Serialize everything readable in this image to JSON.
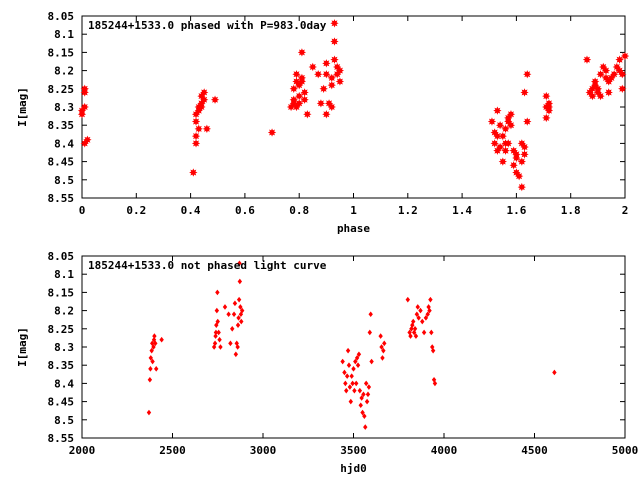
{
  "colors": {
    "marker": "#ff0000",
    "axis": "#000000",
    "background": "#ffffff"
  },
  "chart_data": [
    {
      "type": "scatter",
      "title": "185244+1533.0 phased with P=983.0day",
      "xlabel": "phase",
      "ylabel": "I[mag]",
      "xlim": [
        0,
        2
      ],
      "ylim": [
        8.55,
        8.05
      ],
      "y_inverted": true,
      "grid": false,
      "legend": "none",
      "marker": "filled-star",
      "xticks": [
        "0",
        "0.2",
        "0.4",
        "0.6",
        "0.8",
        "1",
        "1.2",
        "1.4",
        "1.6",
        "1.8",
        "2"
      ],
      "yticks": [
        "8.05",
        "8.1",
        "8.15",
        "8.2",
        "8.25",
        "8.3",
        "8.35",
        "8.4",
        "8.45",
        "8.5",
        "8.55"
      ],
      "points": [
        [
          0.0,
          8.32
        ],
        [
          0.0,
          8.31
        ],
        [
          0.01,
          8.3
        ],
        [
          0.01,
          8.26
        ],
        [
          0.01,
          8.25
        ],
        [
          0.01,
          8.4
        ],
        [
          0.02,
          8.39
        ],
        [
          0.41,
          8.48
        ],
        [
          0.42,
          8.4
        ],
        [
          0.42,
          8.38
        ],
        [
          0.42,
          8.34
        ],
        [
          0.42,
          8.32
        ],
        [
          0.43,
          8.36
        ],
        [
          0.43,
          8.3
        ],
        [
          0.43,
          8.31
        ],
        [
          0.44,
          8.29
        ],
        [
          0.44,
          8.27
        ],
        [
          0.44,
          8.3
        ],
        [
          0.45,
          8.26
        ],
        [
          0.45,
          8.28
        ],
        [
          0.46,
          8.36
        ],
        [
          0.49,
          8.28
        ],
        [
          0.7,
          8.37
        ],
        [
          0.77,
          8.3
        ],
        [
          0.78,
          8.29
        ],
        [
          0.78,
          8.28
        ],
        [
          0.78,
          8.25
        ],
        [
          0.79,
          8.21
        ],
        [
          0.79,
          8.23
        ],
        [
          0.79,
          8.3
        ],
        [
          0.8,
          8.29
        ],
        [
          0.8,
          8.27
        ],
        [
          0.8,
          8.24
        ],
        [
          0.81,
          8.22
        ],
        [
          0.81,
          8.15
        ],
        [
          0.81,
          8.23
        ],
        [
          0.82,
          8.26
        ],
        [
          0.82,
          8.28
        ],
        [
          0.83,
          8.32
        ],
        [
          0.85,
          8.19
        ],
        [
          0.87,
          8.21
        ],
        [
          0.88,
          8.29
        ],
        [
          0.89,
          8.25
        ],
        [
          0.9,
          8.21
        ],
        [
          0.9,
          8.18
        ],
        [
          0.9,
          8.32
        ],
        [
          0.91,
          8.29
        ],
        [
          0.92,
          8.3
        ],
        [
          0.92,
          8.24
        ],
        [
          0.92,
          8.22
        ],
        [
          0.93,
          8.17
        ],
        [
          0.93,
          8.07
        ],
        [
          0.93,
          8.12
        ],
        [
          0.94,
          8.19
        ],
        [
          0.94,
          8.21
        ],
        [
          0.95,
          8.23
        ],
        [
          0.95,
          8.2
        ],
        [
          1.51,
          8.34
        ],
        [
          1.52,
          8.37
        ],
        [
          1.52,
          8.4
        ],
        [
          1.53,
          8.42
        ],
        [
          1.53,
          8.38
        ],
        [
          1.53,
          8.31
        ],
        [
          1.54,
          8.35
        ],
        [
          1.54,
          8.41
        ],
        [
          1.55,
          8.45
        ],
        [
          1.55,
          8.38
        ],
        [
          1.56,
          8.4
        ],
        [
          1.56,
          8.36
        ],
        [
          1.56,
          8.42
        ],
        [
          1.57,
          8.34
        ],
        [
          1.57,
          8.4
        ],
        [
          1.57,
          8.33
        ],
        [
          1.58,
          8.35
        ],
        [
          1.58,
          8.32
        ],
        [
          1.59,
          8.42
        ],
        [
          1.59,
          8.46
        ],
        [
          1.6,
          8.44
        ],
        [
          1.6,
          8.48
        ],
        [
          1.6,
          8.43
        ],
        [
          1.61,
          8.49
        ],
        [
          1.62,
          8.52
        ],
        [
          1.62,
          8.4
        ],
        [
          1.62,
          8.45
        ],
        [
          1.63,
          8.43
        ],
        [
          1.63,
          8.41
        ],
        [
          1.63,
          8.26
        ],
        [
          1.64,
          8.21
        ],
        [
          1.64,
          8.34
        ],
        [
          1.71,
          8.27
        ],
        [
          1.71,
          8.3
        ],
        [
          1.71,
          8.33
        ],
        [
          1.72,
          8.31
        ],
        [
          1.72,
          8.29
        ],
        [
          1.72,
          8.3
        ],
        [
          1.86,
          8.17
        ],
        [
          1.87,
          8.26
        ],
        [
          1.88,
          8.27
        ],
        [
          1.88,
          8.25
        ],
        [
          1.89,
          8.24
        ],
        [
          1.89,
          8.23
        ],
        [
          1.9,
          8.26
        ],
        [
          1.9,
          8.25
        ],
        [
          1.91,
          8.27
        ],
        [
          1.91,
          8.21
        ],
        [
          1.92,
          8.19
        ],
        [
          1.93,
          8.22
        ],
        [
          1.93,
          8.2
        ],
        [
          1.94,
          8.23
        ],
        [
          1.94,
          8.26
        ],
        [
          1.95,
          8.22
        ],
        [
          1.96,
          8.21
        ],
        [
          1.97,
          8.19
        ],
        [
          1.98,
          8.2
        ],
        [
          1.98,
          8.17
        ],
        [
          1.99,
          8.21
        ],
        [
          1.99,
          8.25
        ],
        [
          2.0,
          8.16
        ]
      ]
    },
    {
      "type": "scatter",
      "title": "185244+1533.0 not phased light curve",
      "xlabel": "hjd0",
      "ylabel": "I[mag]",
      "xlim": [
        2000,
        5000
      ],
      "ylim": [
        8.55,
        8.05
      ],
      "y_inverted": true,
      "grid": false,
      "legend": "none",
      "marker": "small-diamond",
      "xticks": [
        "2000",
        "2500",
        "3000",
        "3500",
        "4000",
        "4500",
        "5000"
      ],
      "yticks": [
        "8.05",
        "8.1",
        "8.15",
        "8.2",
        "8.25",
        "8.3",
        "8.35",
        "8.4",
        "8.45",
        "8.5",
        "8.55"
      ],
      "points": [
        [
          2370,
          8.48
        ],
        [
          2375,
          8.39
        ],
        [
          2378,
          8.36
        ],
        [
          2380,
          8.33
        ],
        [
          2385,
          8.31
        ],
        [
          2388,
          8.29
        ],
        [
          2390,
          8.34
        ],
        [
          2395,
          8.3
        ],
        [
          2398,
          8.28
        ],
        [
          2400,
          8.27
        ],
        [
          2405,
          8.29
        ],
        [
          2410,
          8.36
        ],
        [
          2440,
          8.28
        ],
        [
          2730,
          8.3
        ],
        [
          2735,
          8.29
        ],
        [
          2738,
          8.27
        ],
        [
          2740,
          8.26
        ],
        [
          2742,
          8.24
        ],
        [
          2745,
          8.2
        ],
        [
          2748,
          8.15
        ],
        [
          2750,
          8.23
        ],
        [
          2755,
          8.26
        ],
        [
          2760,
          8.28
        ],
        [
          2765,
          8.3
        ],
        [
          2790,
          8.19
        ],
        [
          2810,
          8.21
        ],
        [
          2820,
          8.29
        ],
        [
          2830,
          8.25
        ],
        [
          2840,
          8.21
        ],
        [
          2845,
          8.18
        ],
        [
          2850,
          8.32
        ],
        [
          2855,
          8.29
        ],
        [
          2860,
          8.3
        ],
        [
          2862,
          8.24
        ],
        [
          2865,
          8.22
        ],
        [
          2868,
          8.17
        ],
        [
          2870,
          8.07
        ],
        [
          2872,
          8.12
        ],
        [
          2875,
          8.19
        ],
        [
          2878,
          8.21
        ],
        [
          2880,
          8.23
        ],
        [
          2885,
          8.2
        ],
        [
          3440,
          8.34
        ],
        [
          3450,
          8.37
        ],
        [
          3455,
          8.4
        ],
        [
          3460,
          8.42
        ],
        [
          3465,
          8.38
        ],
        [
          3470,
          8.31
        ],
        [
          3475,
          8.35
        ],
        [
          3480,
          8.41
        ],
        [
          3485,
          8.45
        ],
        [
          3490,
          8.38
        ],
        [
          3495,
          8.4
        ],
        [
          3500,
          8.36
        ],
        [
          3505,
          8.42
        ],
        [
          3510,
          8.34
        ],
        [
          3515,
          8.4
        ],
        [
          3520,
          8.33
        ],
        [
          3525,
          8.35
        ],
        [
          3530,
          8.32
        ],
        [
          3535,
          8.42
        ],
        [
          3540,
          8.46
        ],
        [
          3545,
          8.44
        ],
        [
          3550,
          8.48
        ],
        [
          3555,
          8.43
        ],
        [
          3560,
          8.49
        ],
        [
          3565,
          8.52
        ],
        [
          3570,
          8.4
        ],
        [
          3575,
          8.45
        ],
        [
          3580,
          8.43
        ],
        [
          3585,
          8.41
        ],
        [
          3590,
          8.26
        ],
        [
          3595,
          8.21
        ],
        [
          3600,
          8.34
        ],
        [
          3650,
          8.27
        ],
        [
          3655,
          8.3
        ],
        [
          3660,
          8.33
        ],
        [
          3665,
          8.31
        ],
        [
          3670,
          8.29
        ],
        [
          3800,
          8.17
        ],
        [
          3810,
          8.26
        ],
        [
          3815,
          8.27
        ],
        [
          3820,
          8.25
        ],
        [
          3825,
          8.24
        ],
        [
          3830,
          8.23
        ],
        [
          3835,
          8.26
        ],
        [
          3840,
          8.25
        ],
        [
          3845,
          8.27
        ],
        [
          3850,
          8.21
        ],
        [
          3855,
          8.19
        ],
        [
          3860,
          8.22
        ],
        [
          3870,
          8.2
        ],
        [
          3880,
          8.23
        ],
        [
          3890,
          8.26
        ],
        [
          3900,
          8.22
        ],
        [
          3910,
          8.21
        ],
        [
          3915,
          8.19
        ],
        [
          3920,
          8.2
        ],
        [
          3925,
          8.17
        ],
        [
          3930,
          8.26
        ],
        [
          3935,
          8.3
        ],
        [
          3940,
          8.31
        ],
        [
          3945,
          8.39
        ],
        [
          3950,
          8.4
        ],
        [
          4610,
          8.37
        ]
      ]
    }
  ]
}
